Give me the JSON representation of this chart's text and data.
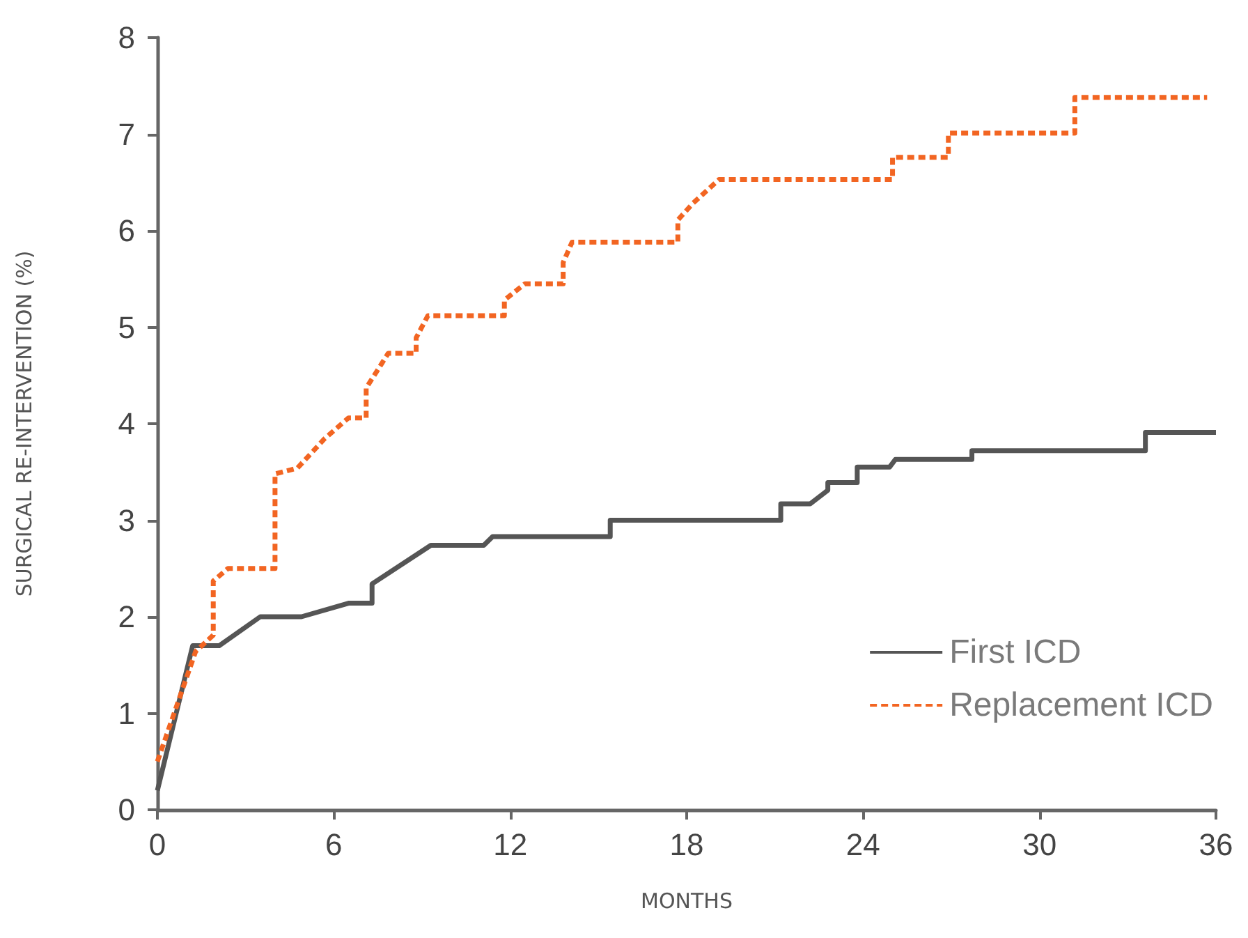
{
  "chart_data": {
    "type": "line",
    "xlabel": "MONTHS",
    "ylabel": "SURGICAL RE-INTERVENTION (%)",
    "xlim": [
      0,
      36
    ],
    "xticks": [
      0,
      6,
      12,
      18,
      24,
      30,
      36
    ],
    "ylim": [
      0,
      8
    ],
    "yticks": [
      0,
      1,
      2,
      3,
      4,
      5,
      6,
      7,
      8
    ],
    "grid": false,
    "legend": "bottom right",
    "marker": "none",
    "series": [
      {
        "name": "First ICD",
        "color": "#555555",
        "line_style": "solid",
        "x": [
          0,
          1.2,
          2.1,
          3.5,
          4.9,
          6.5,
          7.3,
          7.3,
          9.3,
          11.1,
          11.4,
          15.4,
          15.4,
          21.2,
          21.2,
          22.2,
          22.8,
          22.8,
          23.8,
          23.8,
          24.9,
          25.1,
          27.7,
          27.7,
          33.6,
          33.6,
          36
        ],
        "values": [
          0.2,
          1.7,
          1.7,
          2.0,
          2.0,
          2.14,
          2.14,
          2.34,
          2.74,
          2.74,
          2.83,
          2.83,
          3.0,
          3.0,
          3.17,
          3.17,
          3.31,
          3.39,
          3.39,
          3.55,
          3.55,
          3.63,
          3.63,
          3.72,
          3.72,
          3.91,
          3.91
        ]
      },
      {
        "name": "Replacement ICD",
        "color": "#f26522",
        "line_style": "dashed",
        "x": [
          0,
          1.3,
          1.9,
          1.9,
          2.4,
          4.0,
          4.0,
          4.76,
          5.4,
          5.67,
          6.5,
          7.1,
          7.1,
          7.5,
          7.85,
          8.8,
          8.8,
          9.2,
          11.8,
          11.8,
          12.5,
          13.8,
          13.8,
          14.1,
          17.7,
          17.7,
          18.2,
          19.1,
          25.0,
          25.0,
          26.9,
          26.9,
          31.2,
          31.2,
          35.7
        ],
        "values": [
          0.5,
          1.64,
          1.81,
          2.37,
          2.5,
          2.5,
          3.48,
          3.54,
          3.75,
          3.84,
          4.06,
          4.06,
          4.37,
          4.56,
          4.73,
          4.73,
          4.89,
          5.12,
          5.12,
          5.28,
          5.45,
          5.45,
          5.67,
          5.88,
          5.88,
          6.11,
          6.28,
          6.53,
          6.53,
          6.76,
          6.76,
          7.01,
          7.01,
          7.38,
          7.38
        ]
      }
    ]
  }
}
